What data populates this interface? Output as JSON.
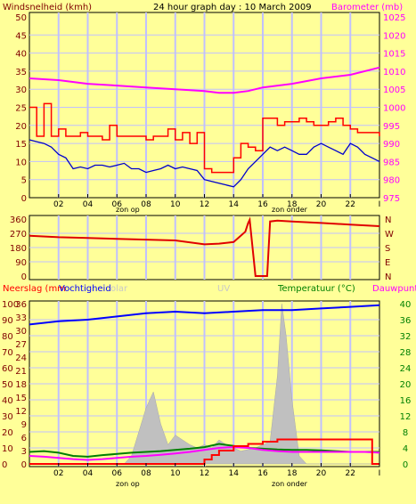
{
  "header": {
    "wind_label": "Windsnelheid (kmh)",
    "title": "24 hour graph day : 10 March 2009",
    "baro_label": "Barometer (mb)"
  },
  "colors": {
    "background": "#ffff99",
    "grid": "#c0c0ff",
    "axis": "#000000",
    "wind": "#ff0000",
    "wind_avg": "#0000cc",
    "barometer": "#ff00ff",
    "wind_dir": "#e00000",
    "humidity": "#0000ff",
    "temperature": "#008000",
    "dewpoint": "#ff00ff",
    "solar": "#c0c0c0",
    "rain": "#ff0000",
    "left_text": "#800000",
    "baro_text": "#ff00ff",
    "temp_text": "#008000"
  },
  "x_axis": {
    "ticks": [
      "02",
      "04",
      "06",
      "08",
      "10",
      "12",
      "14",
      "16",
      "18",
      "20",
      "22",
      "I"
    ],
    "sunrise_label": "zon op",
    "sunset_label": "zon onder"
  },
  "panel1": {
    "left_ticks": [
      "50",
      "45",
      "40",
      "35",
      "30",
      "25",
      "20",
      "15",
      "10",
      "5",
      "0"
    ],
    "right_ticks": [
      "1025",
      "1020",
      "1015",
      "1010",
      "1005",
      "1000",
      "995",
      "990",
      "985",
      "980",
      "975"
    ]
  },
  "panel2": {
    "left_ticks": [
      "360",
      "270",
      "180",
      "90",
      "0"
    ],
    "right_ticks": [
      "N",
      "W",
      "S",
      "E",
      "N"
    ]
  },
  "panel3": {
    "rain_label": "Neerslag (mm",
    "humidity_label": "Vochtigheid",
    "solar_label": "olar",
    "uv_label": "UV",
    "temp_label": "Temperatuur (°C)",
    "dew_label": "Dauwpunt",
    "left_ticks_a": [
      "100",
      "90",
      "80",
      "70",
      "60",
      "50",
      "40",
      "30",
      "20",
      "10",
      "0"
    ],
    "left_ticks_b": [
      "36",
      "33",
      "30",
      "27",
      "24",
      "21",
      "18",
      "15",
      "12",
      "9",
      "6",
      "3",
      "0"
    ],
    "right_ticks": [
      "40",
      "36",
      "32",
      "28",
      "24",
      "20",
      "16",
      "12",
      "8",
      "4",
      "0"
    ]
  },
  "chart_data": [
    {
      "type": "line",
      "title": "24 hour graph day : 10 March 2009",
      "xlabel": "",
      "x_ticks": [
        "02",
        "04",
        "06",
        "08",
        "10",
        "12",
        "14",
        "16",
        "18",
        "20",
        "22",
        "I"
      ],
      "x_hours": [
        0,
        24
      ],
      "ylim_left": [
        0,
        50
      ],
      "ylim_right": [
        975,
        1025
      ],
      "series": [
        {
          "name": "Windsnelheid (kmh)",
          "axis": "left",
          "style": "step",
          "x": [
            0,
            0.5,
            1,
            1.5,
            2,
            2.5,
            3,
            3.5,
            4,
            4.5,
            5,
            5.5,
            6,
            6.5,
            7,
            7.5,
            8,
            8.5,
            9,
            9.5,
            10,
            10.5,
            11,
            11.5,
            12,
            12.5,
            13,
            13.5,
            14,
            14.5,
            15,
            15.5,
            16,
            16.5,
            17,
            17.5,
            18,
            18.5,
            19,
            19.5,
            20,
            20.5,
            21,
            21.5,
            22,
            22.5,
            23,
            23.5,
            24
          ],
          "y": [
            25,
            17,
            26,
            17,
            19,
            17,
            17,
            18,
            17,
            17,
            16,
            20,
            17,
            17,
            17,
            17,
            16,
            17,
            17,
            19,
            16,
            18,
            15,
            18,
            8,
            7,
            7,
            7,
            11,
            15,
            14,
            13,
            22,
            22,
            20,
            21,
            21,
            22,
            21,
            20,
            20,
            21,
            22,
            20,
            19,
            18,
            18,
            18,
            17
          ]
        },
        {
          "name": "",
          "axis": "left",
          "x": [
            0,
            0.5,
            1,
            1.5,
            2,
            2.5,
            3,
            3.5,
            4,
            4.5,
            5,
            5.5,
            6,
            6.5,
            7,
            7.5,
            8,
            8.5,
            9,
            9.5,
            10,
            10.5,
            11,
            11.5,
            12,
            12.5,
            13,
            13.5,
            14,
            14.5,
            15,
            15.5,
            16,
            16.5,
            17,
            17.5,
            18,
            18.5,
            19,
            19.5,
            20,
            20.5,
            21,
            21.5,
            22,
            22.5,
            23,
            23.5,
            24
          ],
          "y": [
            16,
            15.5,
            15,
            14,
            12,
            11,
            8,
            8.5,
            8,
            9,
            9,
            8.5,
            9,
            9.5,
            8,
            8,
            7,
            7.5,
            8,
            9,
            8,
            8.5,
            8,
            7.5,
            5,
            4.5,
            4,
            3.5,
            3,
            5,
            8,
            10,
            12,
            14,
            13,
            14,
            13,
            12,
            12,
            14,
            15,
            14,
            13,
            12,
            15,
            14,
            12,
            11,
            10
          ]
        },
        {
          "name": "Barometer (mb)",
          "axis": "right",
          "x": [
            0,
            2,
            4,
            6,
            8,
            10,
            12,
            13,
            14,
            15,
            16,
            18,
            20,
            22,
            24
          ],
          "y": [
            1008,
            1007.5,
            1006.5,
            1006,
            1005.5,
            1005,
            1004.5,
            1004,
            1004,
            1004.5,
            1005.5,
            1006.5,
            1008,
            1009,
            1011
          ]
        }
      ]
    },
    {
      "type": "line",
      "ylim": [
        0,
        360
      ],
      "y_ticks": [
        "360",
        "270",
        "180",
        "90",
        "0"
      ],
      "right_ticks": [
        "N",
        "W",
        "S",
        "E",
        "N"
      ],
      "series": [
        {
          "name": "",
          "x": [
            0,
            2,
            4,
            6,
            8,
            10,
            12,
            13,
            14,
            14.8,
            15,
            15.1,
            15.5,
            16,
            16.3,
            16.5,
            17,
            18,
            20,
            22,
            24
          ],
          "y": [
            255,
            245,
            240,
            235,
            230,
            225,
            200,
            205,
            215,
            280,
            335,
            355,
            0,
            0,
            0,
            345,
            350,
            345,
            335,
            325,
            315
          ]
        }
      ]
    },
    {
      "type": "area",
      "x_ticks": [
        "02",
        "04",
        "06",
        "08",
        "10",
        "12",
        "14",
        "16",
        "18",
        "20",
        "22",
        "I"
      ],
      "ylim_left": [
        0,
        100
      ],
      "ylim_right": [
        0,
        40
      ],
      "series": [
        {
          "name": "Vochtigheid",
          "axis": "left",
          "kind": "line",
          "x": [
            0,
            2,
            4,
            6,
            8,
            10,
            12,
            14,
            16,
            18,
            20,
            22,
            24
          ],
          "y": [
            87,
            89,
            90,
            92,
            94,
            95,
            94,
            95,
            96,
            96,
            97,
            98,
            99
          ]
        },
        {
          "name": "Temperatuur (°C)",
          "axis": "right",
          "kind": "line",
          "x": [
            0,
            1,
            2,
            3,
            4,
            5,
            6,
            7,
            8,
            9,
            10,
            11,
            12,
            13,
            14,
            15,
            16,
            17,
            18,
            19,
            20,
            21,
            22,
            23,
            24
          ],
          "y": [
            3,
            3.2,
            2.8,
            2,
            1.8,
            2.2,
            2.5,
            2.8,
            3,
            3.2,
            3.5,
            3.8,
            4.2,
            5,
            4.5,
            4,
            3.8,
            3.6,
            3.5,
            3.5,
            3.4,
            3.2,
            3,
            3,
            3
          ]
        },
        {
          "name": "Dauwpunt",
          "axis": "right",
          "kind": "line",
          "x": [
            0,
            1,
            2,
            3,
            4,
            5,
            6,
            7,
            8,
            9,
            10,
            11,
            12,
            13,
            14,
            15,
            16,
            17,
            18,
            19,
            20,
            21,
            22,
            23,
            24
          ],
          "y": [
            2,
            1.8,
            1.5,
            1.2,
            1,
            1.2,
            1.5,
            1.8,
            2,
            2.3,
            2.6,
            3,
            3.5,
            4,
            4.2,
            4,
            3.5,
            3.2,
            3,
            3,
            3,
            3,
            3,
            3,
            2.8
          ]
        },
        {
          "name": "Neerslag (mm",
          "axis": "left_b",
          "kind": "step",
          "x": [
            0,
            11.5,
            12,
            12.5,
            13,
            14,
            15,
            16,
            17,
            18,
            23,
            23.5,
            24
          ],
          "y": [
            0,
            0,
            1,
            2,
            3,
            4,
            4.5,
            5,
            5.5,
            5.5,
            5.5,
            0,
            0
          ]
        },
        {
          "name": "",
          "axis": "left",
          "kind": "area",
          "x": [
            0,
            6.5,
            7,
            7.5,
            8,
            8.5,
            9,
            9.5,
            10,
            10.5,
            11,
            11.5,
            12,
            12.5,
            13,
            13.5,
            14,
            14.5,
            15,
            15.5,
            16,
            16.5,
            17,
            17.3,
            17.6,
            18,
            18.5,
            19,
            24
          ],
          "y": [
            0,
            0,
            5,
            20,
            35,
            45,
            25,
            12,
            18,
            15,
            12,
            10,
            12,
            10,
            15,
            12,
            10,
            8,
            9,
            10,
            12,
            14,
            55,
            100,
            80,
            40,
            5,
            0,
            0
          ]
        }
      ]
    }
  ]
}
